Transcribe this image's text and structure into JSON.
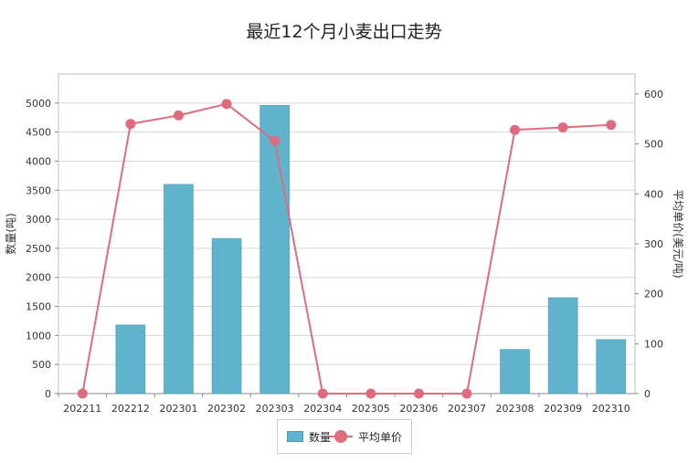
{
  "chart_data": {
    "type": "bar+line",
    "title": "最近12个月小麦出口走势",
    "categories": [
      "202211",
      "202212",
      "202301",
      "202302",
      "202303",
      "202304",
      "202305",
      "202306",
      "202307",
      "202308",
      "202309",
      "202310"
    ],
    "series": [
      {
        "name": "数量",
        "type": "bar",
        "axis": "left",
        "color": "#5fb3cc",
        "values": [
          0,
          1180,
          3600,
          2670,
          4960,
          0,
          0,
          0,
          0,
          760,
          1650,
          930
        ]
      },
      {
        "name": "平均单价",
        "type": "line",
        "axis": "right",
        "color": "#e06a7e",
        "values": [
          0,
          540,
          557,
          580,
          506,
          0,
          0,
          0,
          0,
          528,
          533,
          538
        ]
      }
    ],
    "ylabel_left": "数量(吨)",
    "ylabel_right": "平均单价(美元/吨)",
    "ylim_left": [
      0,
      5500
    ],
    "yticks_left": [
      0,
      500,
      1000,
      1500,
      2000,
      2500,
      3000,
      3500,
      4000,
      4500,
      5000
    ],
    "ylim_right": [
      0,
      640
    ],
    "yticks_right": [
      0,
      100,
      200,
      300,
      400,
      500,
      600
    ],
    "grid": true,
    "legend_position": "bottom-center"
  },
  "legend": {
    "bar_label": "数量",
    "line_label": "平均单价"
  }
}
